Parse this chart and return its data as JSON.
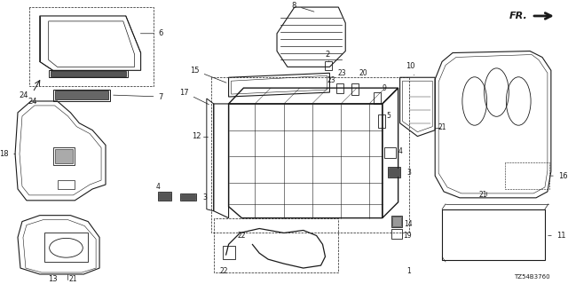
{
  "bg_color": "#ffffff",
  "line_color": "#1a1a1a",
  "diagram_code": "TZ54B3760",
  "figsize": [
    6.4,
    3.2
  ],
  "dpi": 100
}
